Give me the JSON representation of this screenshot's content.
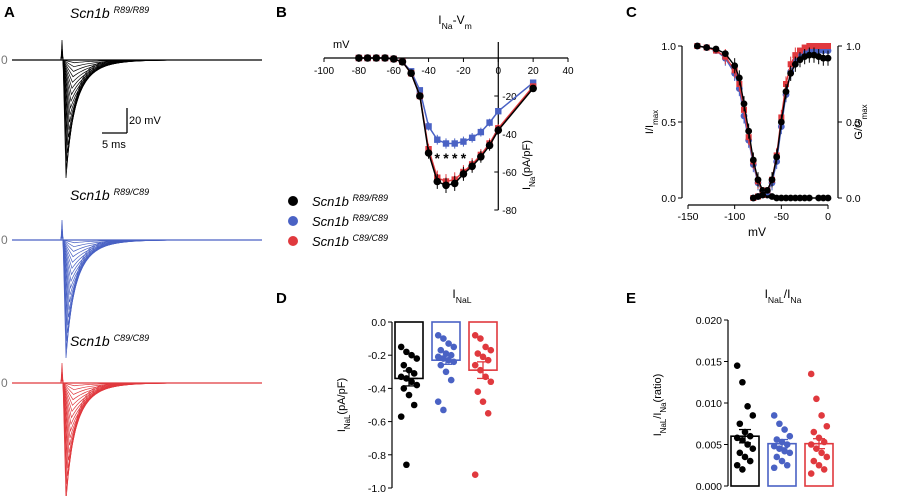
{
  "colors": {
    "wt": "#000000",
    "het": "#4a62c4",
    "hom": "#e0393e"
  },
  "panels": {
    "A": {
      "letter": "A",
      "genotypes": [
        {
          "key": "wt",
          "prefix": "Scn1b",
          "superscript": "R89/R89",
          "zero_label": "0"
        },
        {
          "key": "het",
          "prefix": "Scn1b",
          "superscript": "R89/C89",
          "zero_label": "0"
        },
        {
          "key": "hom",
          "prefix": "Scn1b",
          "superscript": "C89/C89",
          "zero_label": "0"
        }
      ],
      "scalebar": {
        "vertical": "20 mV",
        "horizontal": "5 ms"
      }
    },
    "B": {
      "letter": "B"
    },
    "C": {
      "letter": "C"
    },
    "D": {
      "letter": "D"
    },
    "E": {
      "letter": "E"
    }
  },
  "legend": [
    {
      "key": "wt",
      "prefix": "Scn1b",
      "superscript": "R89/R89"
    },
    {
      "key": "het",
      "prefix": "Scn1b",
      "superscript": "R89/C89"
    },
    {
      "key": "hom",
      "prefix": "Scn1b",
      "superscript": "C89/C89"
    }
  ],
  "chart_data": [
    {
      "panel": "B",
      "type": "line",
      "title": {
        "base": "I",
        "sub": "Na",
        "mid": "-V",
        "sub2": "m"
      },
      "xlabel": "mV",
      "ylabel": {
        "base": "I",
        "sub": "Na",
        "rest": "(pA/pF)"
      },
      "xlim": [
        -100,
        40
      ],
      "ylim": [
        -80,
        0
      ],
      "xticks": [
        -100,
        -80,
        -60,
        -40,
        -20,
        0,
        20,
        40
      ],
      "yticks": [
        -20,
        -40,
        -60,
        -80
      ],
      "significance": [
        {
          "x": -35,
          "label": "*"
        },
        {
          "x": -30,
          "label": "*"
        },
        {
          "x": -25,
          "label": "*"
        },
        {
          "x": -20,
          "label": "*"
        },
        {
          "x": -10,
          "label": "*"
        }
      ],
      "series": [
        {
          "key": "wt",
          "x": [
            -80,
            -75,
            -70,
            -65,
            -60,
            -55,
            -50,
            -45,
            -40,
            -35,
            -30,
            -25,
            -20,
            -15,
            -10,
            -5,
            0,
            20
          ],
          "y": [
            0,
            0,
            0,
            0,
            -0.5,
            -2,
            -8,
            -20,
            -50,
            -65,
            -67,
            -66,
            -61,
            -57,
            -52,
            -46,
            -38,
            -16
          ]
        },
        {
          "key": "het",
          "x": [
            -80,
            -75,
            -70,
            -65,
            -60,
            -55,
            -50,
            -45,
            -40,
            -35,
            -30,
            -25,
            -20,
            -15,
            -10,
            -5,
            0,
            20
          ],
          "y": [
            0,
            0,
            0,
            0,
            -0.5,
            -2,
            -7,
            -17,
            -36,
            -43,
            -45,
            -45,
            -44,
            -42,
            -39,
            -34,
            -28,
            -13
          ]
        },
        {
          "key": "hom",
          "x": [
            -80,
            -75,
            -70,
            -65,
            -60,
            -55,
            -50,
            -45,
            -40,
            -35,
            -30,
            -25,
            -20,
            -15,
            -10,
            -5,
            0,
            20
          ],
          "y": [
            0,
            0,
            0,
            0,
            -0.5,
            -2,
            -8,
            -20,
            -48,
            -63,
            -65,
            -64,
            -60,
            -56,
            -51,
            -45,
            -37,
            -15
          ]
        }
      ]
    },
    {
      "panel": "C",
      "type": "scatter",
      "xlabel": "mV",
      "ylabel_left": {
        "base": "I/I",
        "sub": "max"
      },
      "ylabel_right": {
        "base": "G/G",
        "sub": "max"
      },
      "xlim": [
        -150,
        0
      ],
      "ylim": [
        0,
        1
      ],
      "xticks": [
        -150,
        -100,
        -50,
        0
      ],
      "yticks": [
        "0.0",
        "0.5",
        "1.0"
      ],
      "inactivation": {
        "x": [
          -140,
          -130,
          -120,
          -110,
          -100,
          -95,
          -90,
          -85,
          -80,
          -75,
          -70,
          -65,
          -60,
          -55,
          -50,
          -45,
          -40,
          -35,
          -30,
          -25,
          -20,
          -10,
          -5,
          0
        ],
        "series": [
          {
            "key": "wt",
            "y": [
              1.0,
              0.99,
              0.98,
              0.95,
              0.87,
              0.79,
              0.62,
              0.44,
              0.25,
              0.12,
              0.05,
              0.02,
              0.01,
              0.0,
              0.0,
              0.0,
              0.0,
              0.0,
              0.0,
              0.0,
              0.0,
              0.0,
              0.0,
              0.0
            ]
          },
          {
            "key": "het",
            "y": [
              1.0,
              0.99,
              0.97,
              0.92,
              0.82,
              0.72,
              0.54,
              0.38,
              0.22,
              0.1,
              0.04,
              0.02
            ]
          },
          {
            "key": "hom",
            "y": [
              1.0,
              0.99,
              0.97,
              0.93,
              0.84,
              0.75,
              0.58,
              0.4,
              0.24,
              0.11,
              0.04,
              0.02
            ]
          }
        ]
      },
      "activation": {
        "x": [
          -80,
          -75,
          -70,
          -65,
          -60,
          -55,
          -50,
          -45,
          -40,
          -35,
          -30,
          -25,
          -20,
          -15,
          -10,
          -5,
          0
        ],
        "series": [
          {
            "key": "wt",
            "y": [
              0.0,
              0.01,
              0.02,
              0.05,
              0.12,
              0.27,
              0.5,
              0.7,
              0.82,
              0.88,
              0.91,
              0.93,
              0.94,
              0.94,
              0.93,
              0.92,
              0.92
            ]
          },
          {
            "key": "het",
            "y": [
              0.0,
              0.01,
              0.02,
              0.04,
              0.1,
              0.24,
              0.47,
              0.68,
              0.83,
              0.9,
              0.94,
              0.96,
              0.97,
              0.97,
              0.97,
              0.97,
              0.97
            ]
          },
          {
            "key": "hom",
            "y": [
              0.0,
              0.01,
              0.02,
              0.05,
              0.12,
              0.28,
              0.53,
              0.75,
              0.88,
              0.94,
              0.97,
              0.99,
              1.0,
              1.0,
              1.0,
              1.0,
              1.0
            ]
          }
        ]
      }
    },
    {
      "panel": "D",
      "type": "bar",
      "title": {
        "base": "I",
        "sub": "NaL"
      },
      "ylabel": {
        "base": "I",
        "sub": "NaL",
        "rest": "(pA/pF)"
      },
      "ylim": [
        -1.0,
        0
      ],
      "yticks": [
        "0.0",
        "-0.2",
        "-0.4",
        "-0.6",
        "-0.8",
        "-1.0"
      ],
      "series": [
        {
          "key": "wt",
          "mean": -0.34,
          "sem": 0.045,
          "points": [
            -0.15,
            -0.18,
            -0.2,
            -0.22,
            -0.26,
            -0.29,
            -0.31,
            -0.33,
            -0.34,
            -0.36,
            -0.38,
            -0.4,
            -0.44,
            -0.5,
            -0.57,
            -0.86
          ]
        },
        {
          "key": "het",
          "mean": -0.23,
          "sem": 0.025,
          "points": [
            -0.08,
            -0.1,
            -0.13,
            -0.15,
            -0.17,
            -0.19,
            -0.2,
            -0.21,
            -0.22,
            -0.23,
            -0.24,
            -0.26,
            -0.3,
            -0.35,
            -0.48,
            -0.53
          ]
        },
        {
          "key": "hom",
          "mean": -0.29,
          "sem": 0.05,
          "points": [
            -0.08,
            -0.1,
            -0.15,
            -0.17,
            -0.19,
            -0.21,
            -0.23,
            -0.26,
            -0.29,
            -0.33,
            -0.36,
            -0.42,
            -0.48,
            -0.55,
            -0.92
          ]
        }
      ]
    },
    {
      "panel": "E",
      "type": "bar",
      "title": {
        "base": "I",
        "sub": "NaL",
        "mid": "/I",
        "sub2": "Na"
      },
      "ylabel": {
        "base": "I",
        "sub": "NaL",
        "mid": "/I",
        "sub2": "Na",
        "rest": "(ratio)"
      },
      "ylim": [
        0,
        0.02
      ],
      "yticks": [
        "0.000",
        "0.005",
        "0.010",
        "0.015",
        "0.020"
      ],
      "series": [
        {
          "key": "wt",
          "mean": 0.006,
          "sem": 0.0008,
          "points": [
            0.0145,
            0.0125,
            0.0096,
            0.0085,
            0.0075,
            0.0065,
            0.006,
            0.0058,
            0.0055,
            0.005,
            0.0045,
            0.004,
            0.0035,
            0.003,
            0.0025,
            0.002
          ]
        },
        {
          "key": "het",
          "mean": 0.0051,
          "sem": 0.0005,
          "points": [
            0.0085,
            0.0075,
            0.0068,
            0.006,
            0.0056,
            0.0053,
            0.005,
            0.0048,
            0.0045,
            0.0042,
            0.004,
            0.0035,
            0.003,
            0.0025,
            0.0022
          ]
        },
        {
          "key": "hom",
          "mean": 0.0051,
          "sem": 0.0006,
          "points": [
            0.0135,
            0.0105,
            0.0085,
            0.0072,
            0.0065,
            0.0058,
            0.0053,
            0.005,
            0.0045,
            0.004,
            0.0035,
            0.003,
            0.0025,
            0.002,
            0.0015
          ]
        }
      ]
    }
  ]
}
